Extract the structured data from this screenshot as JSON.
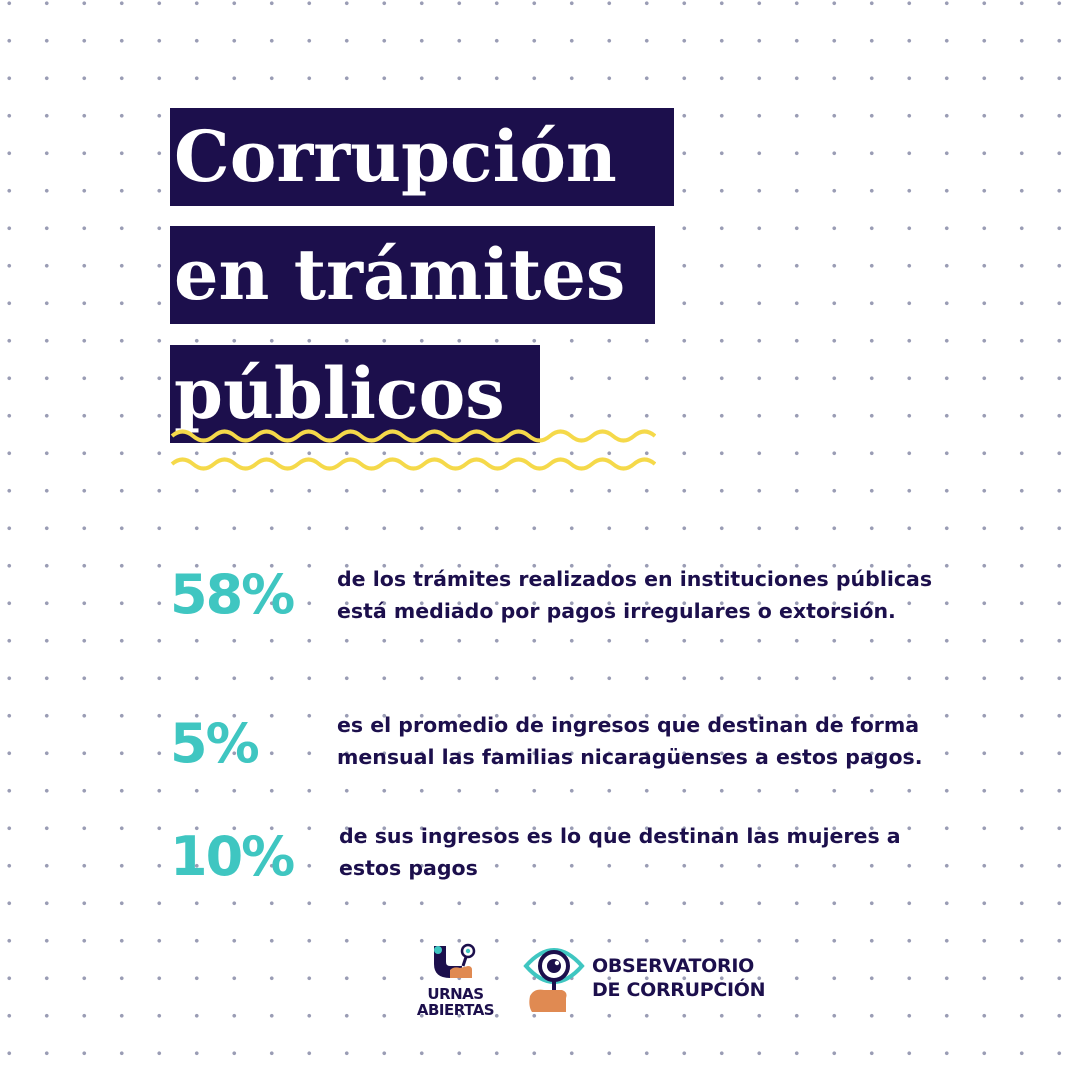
{
  "title": {
    "lines": [
      "Corrupción",
      "en trámites",
      "públicos"
    ]
  },
  "stats": [
    {
      "value": "58%",
      "text": "de los trámites realizados en instituciones públicas\nestá mediado por pagos irregulares o extorsión."
    },
    {
      "value": "5%",
      "text": "es el promedio de ingresos que destinan de forma\nmensual las familias nicaragüenses a estos pagos."
    },
    {
      "value": "10%",
      "text": "de sus ingresos es lo que destinan las mujeres a\nestos pagos"
    }
  ],
  "logos": {
    "urnas_abiertas": "URNAS\nABIERTAS",
    "observatorio": "OBSERVATORIO\nDE CORRUPCIÓN"
  },
  "colors": {
    "navy": "#1c0f4c",
    "teal": "#3fc6c1",
    "yellow": "#f5d94a",
    "orange": "#e08a52",
    "dots": "#9a9db5"
  }
}
